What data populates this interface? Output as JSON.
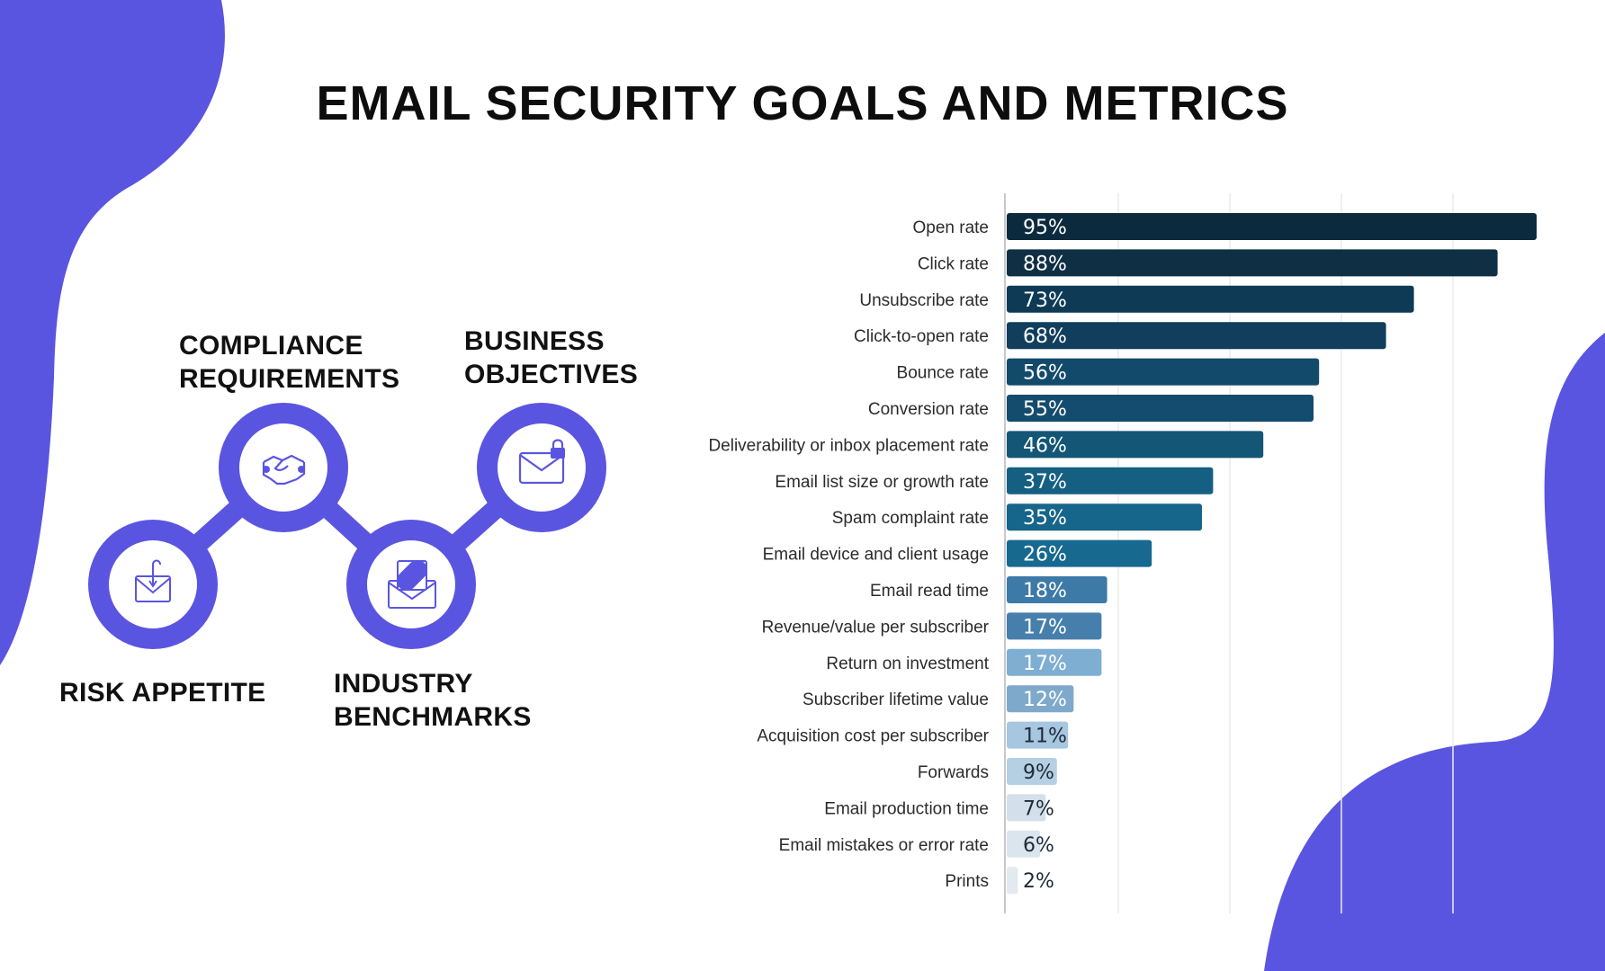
{
  "title": "EMAIL SECURITY GOALS AND METRICS",
  "colors": {
    "blob": "#5a55e0",
    "diagram": "#5a55e0",
    "bar_darkest": "#0c2a3d",
    "bar_lightest": "#dfe8f0"
  },
  "goals": [
    {
      "id": "risk",
      "lines": [
        "RISK APPETITE"
      ],
      "icon": "phishing-envelope-icon"
    },
    {
      "id": "compliance",
      "lines": [
        "COMPLIANCE",
        "REQUIREMENTS"
      ],
      "icon": "handshake-icon"
    },
    {
      "id": "industry",
      "lines": [
        "INDUSTRY",
        "BENCHMARKS"
      ],
      "icon": "blocked-letter-icon"
    },
    {
      "id": "business",
      "lines": [
        "BUSINESS",
        "OBJECTIVES"
      ],
      "icon": "locked-envelope-icon"
    }
  ],
  "chart_data": {
    "type": "bar",
    "orientation": "horizontal",
    "categories": [
      "Open rate",
      "Click rate",
      "Unsubscribe rate",
      "Click-to-open rate",
      "Bounce rate",
      "Conversion rate",
      "Deliverability or inbox placement rate",
      "Email list size or growth rate",
      "Spam complaint rate",
      "Email device and client usage",
      "Email read time",
      "Revenue/value per subscriber",
      "Return on investment",
      "Subscriber lifetime value",
      "Acquisition cost per subscriber",
      "Forwards",
      "Email production time",
      "Email mistakes or error rate",
      "Prints"
    ],
    "values": [
      95,
      88,
      73,
      68,
      56,
      55,
      46,
      37,
      35,
      26,
      18,
      17,
      17,
      12,
      11,
      9,
      7,
      6,
      2
    ],
    "value_labels": [
      "95%",
      "88%",
      "73%",
      "68%",
      "56%",
      "55%",
      "46%",
      "37%",
      "35%",
      "26%",
      "18%",
      "17%",
      "17%",
      "12%",
      "11%",
      "9%",
      "7%",
      "6%",
      "2%"
    ],
    "bar_colors": [
      "#0c2a3d",
      "#0f2f45",
      "#0f3a56",
      "#103e5c",
      "#124a6b",
      "#134c6e",
      "#145675",
      "#155f83",
      "#16658a",
      "#17698f",
      "#3e7aa8",
      "#477fac",
      "#7eaed2",
      "#7ea9cb",
      "#a7c6df",
      "#b5cfe3",
      "#d3e0eb",
      "#dbe5ee",
      "#e2e9f0"
    ],
    "xlim": [
      0,
      100
    ],
    "grid": true,
    "legend": "none"
  }
}
